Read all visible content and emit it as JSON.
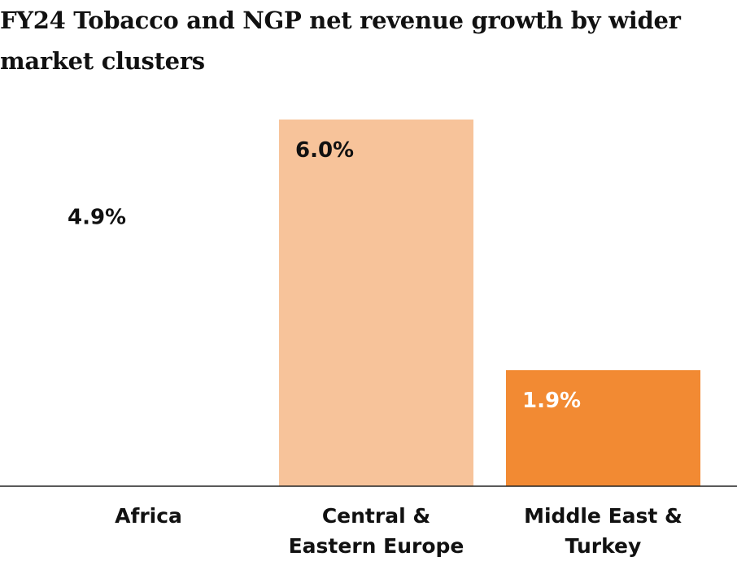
{
  "chart_data": {
    "type": "bar",
    "title": "FY24 Tobacco and NGP net revenue growth by wider market clusters",
    "categories": [
      "Africa",
      "Central & Eastern Europe",
      "Middle East & Turkey"
    ],
    "category_lines": [
      [
        "Africa"
      ],
      [
        "Central &",
        "Eastern Europe"
      ],
      [
        "Middle East &",
        "Turkey"
      ]
    ],
    "values": [
      4.9,
      6.0,
      1.9
    ],
    "value_labels": [
      "4.9%",
      "6.0%",
      "1.9%"
    ],
    "bar_colors": [
      "#FFFFFF",
      "#F7C39A",
      "#F28A33"
    ],
    "label_colors": [
      "#111111",
      "#111111",
      "#FFFFFF"
    ],
    "xlabel": "",
    "ylabel": "",
    "ylim": [
      0,
      6.0
    ],
    "grid": false,
    "legend": "none"
  }
}
